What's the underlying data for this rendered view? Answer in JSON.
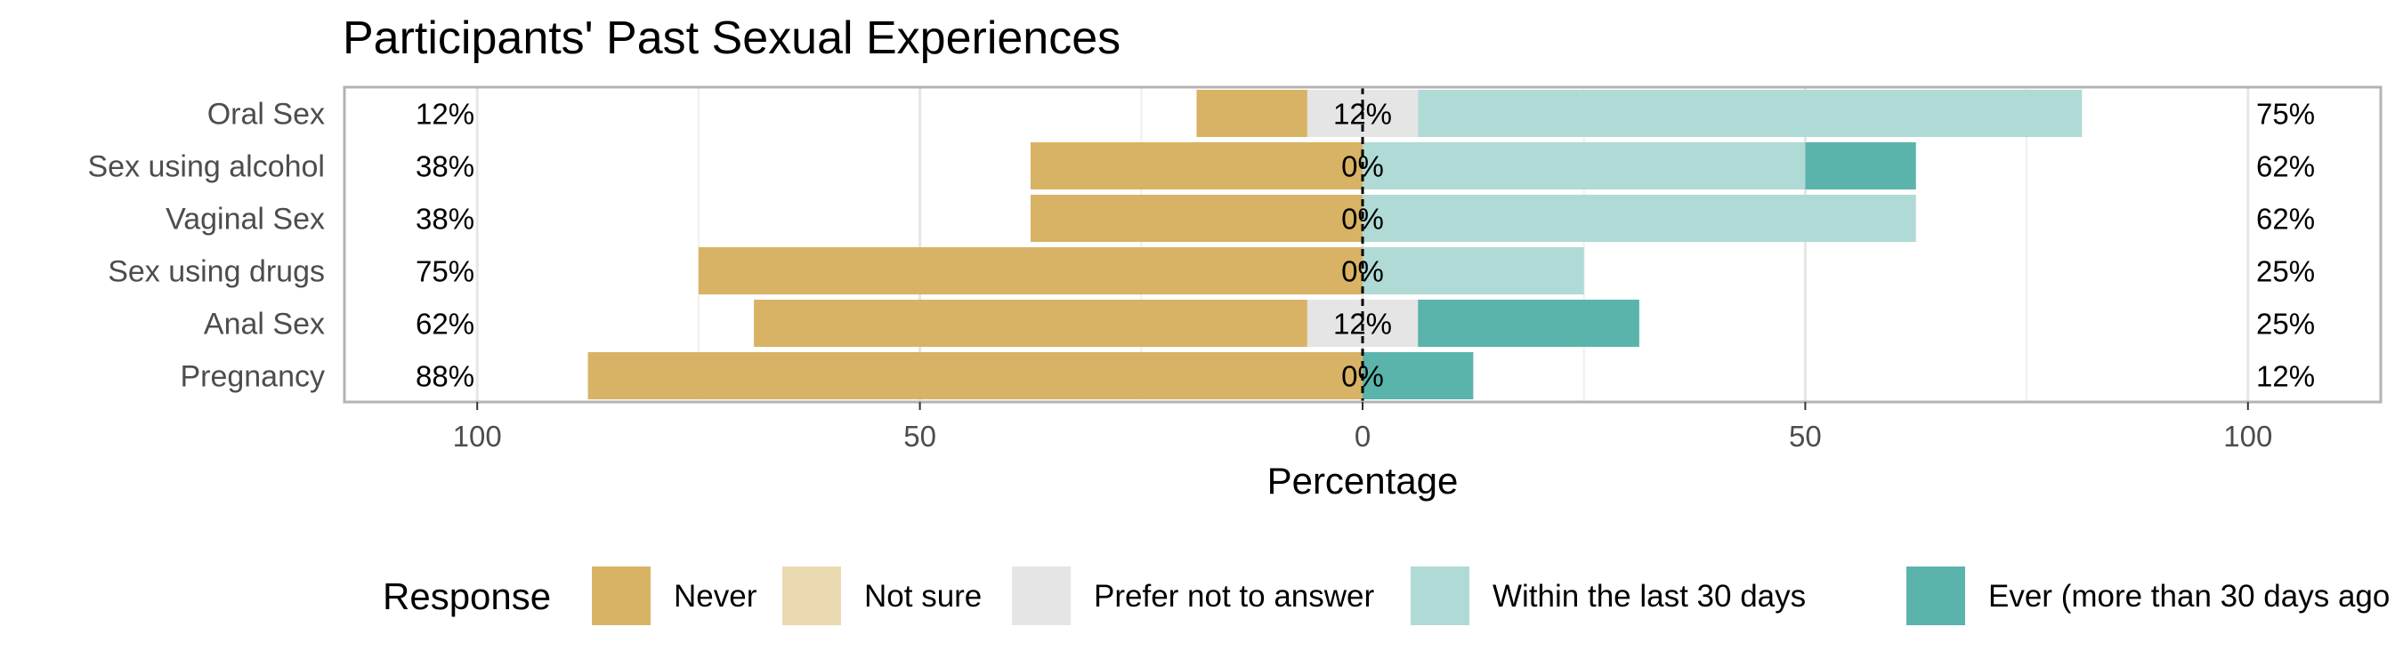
{
  "chart_data": {
    "type": "bar",
    "orientation": "horizontal-diverging",
    "title": "Participants' Past Sexual Experiences",
    "xlabel": "Percentage",
    "ylabel": "",
    "xlim": [
      -115,
      115
    ],
    "x_ticks": [
      -100,
      -50,
      0,
      50,
      100
    ],
    "x_tick_labels": [
      "100",
      "50",
      "0",
      "50",
      "100"
    ],
    "grid": true,
    "categories": [
      "Oral Sex",
      "Sex using alcohol",
      "Vaginal Sex",
      "Sex using drugs",
      "Anal Sex",
      "Pregnancy"
    ],
    "series": [
      {
        "name": "Never",
        "color": "#d8b365",
        "side": "left",
        "values": [
          12.5,
          37.5,
          37.5,
          75,
          62.5,
          87.5
        ]
      },
      {
        "name": "Not sure",
        "color": "#ebd9b2",
        "side": "left",
        "values": [
          0,
          0,
          0,
          0,
          0,
          0
        ]
      },
      {
        "name": "Prefer not to answer",
        "color": "#e5e5e5",
        "side": "center",
        "values": [
          12.5,
          0,
          0,
          0,
          12.5,
          0
        ]
      },
      {
        "name": "Within the last 30 days",
        "color": "#b0dad6",
        "side": "right",
        "values": [
          75,
          50,
          62.5,
          25,
          0,
          0
        ]
      },
      {
        "name": "Ever (more than 30 days ago",
        "color": "#5ab4ac",
        "side": "right",
        "values": [
          0,
          12.5,
          0,
          0,
          25,
          12.5
        ]
      }
    ],
    "left_labels": [
      "12%",
      "38%",
      "38%",
      "75%",
      "62%",
      "88%"
    ],
    "center_labels": [
      "12%",
      "0%",
      "0%",
      "0%",
      "12%",
      "0%"
    ],
    "right_labels": [
      "75%",
      "62%",
      "62%",
      "25%",
      "25%",
      "12%"
    ],
    "legend": {
      "title": "Response",
      "placement": "bottom"
    }
  }
}
